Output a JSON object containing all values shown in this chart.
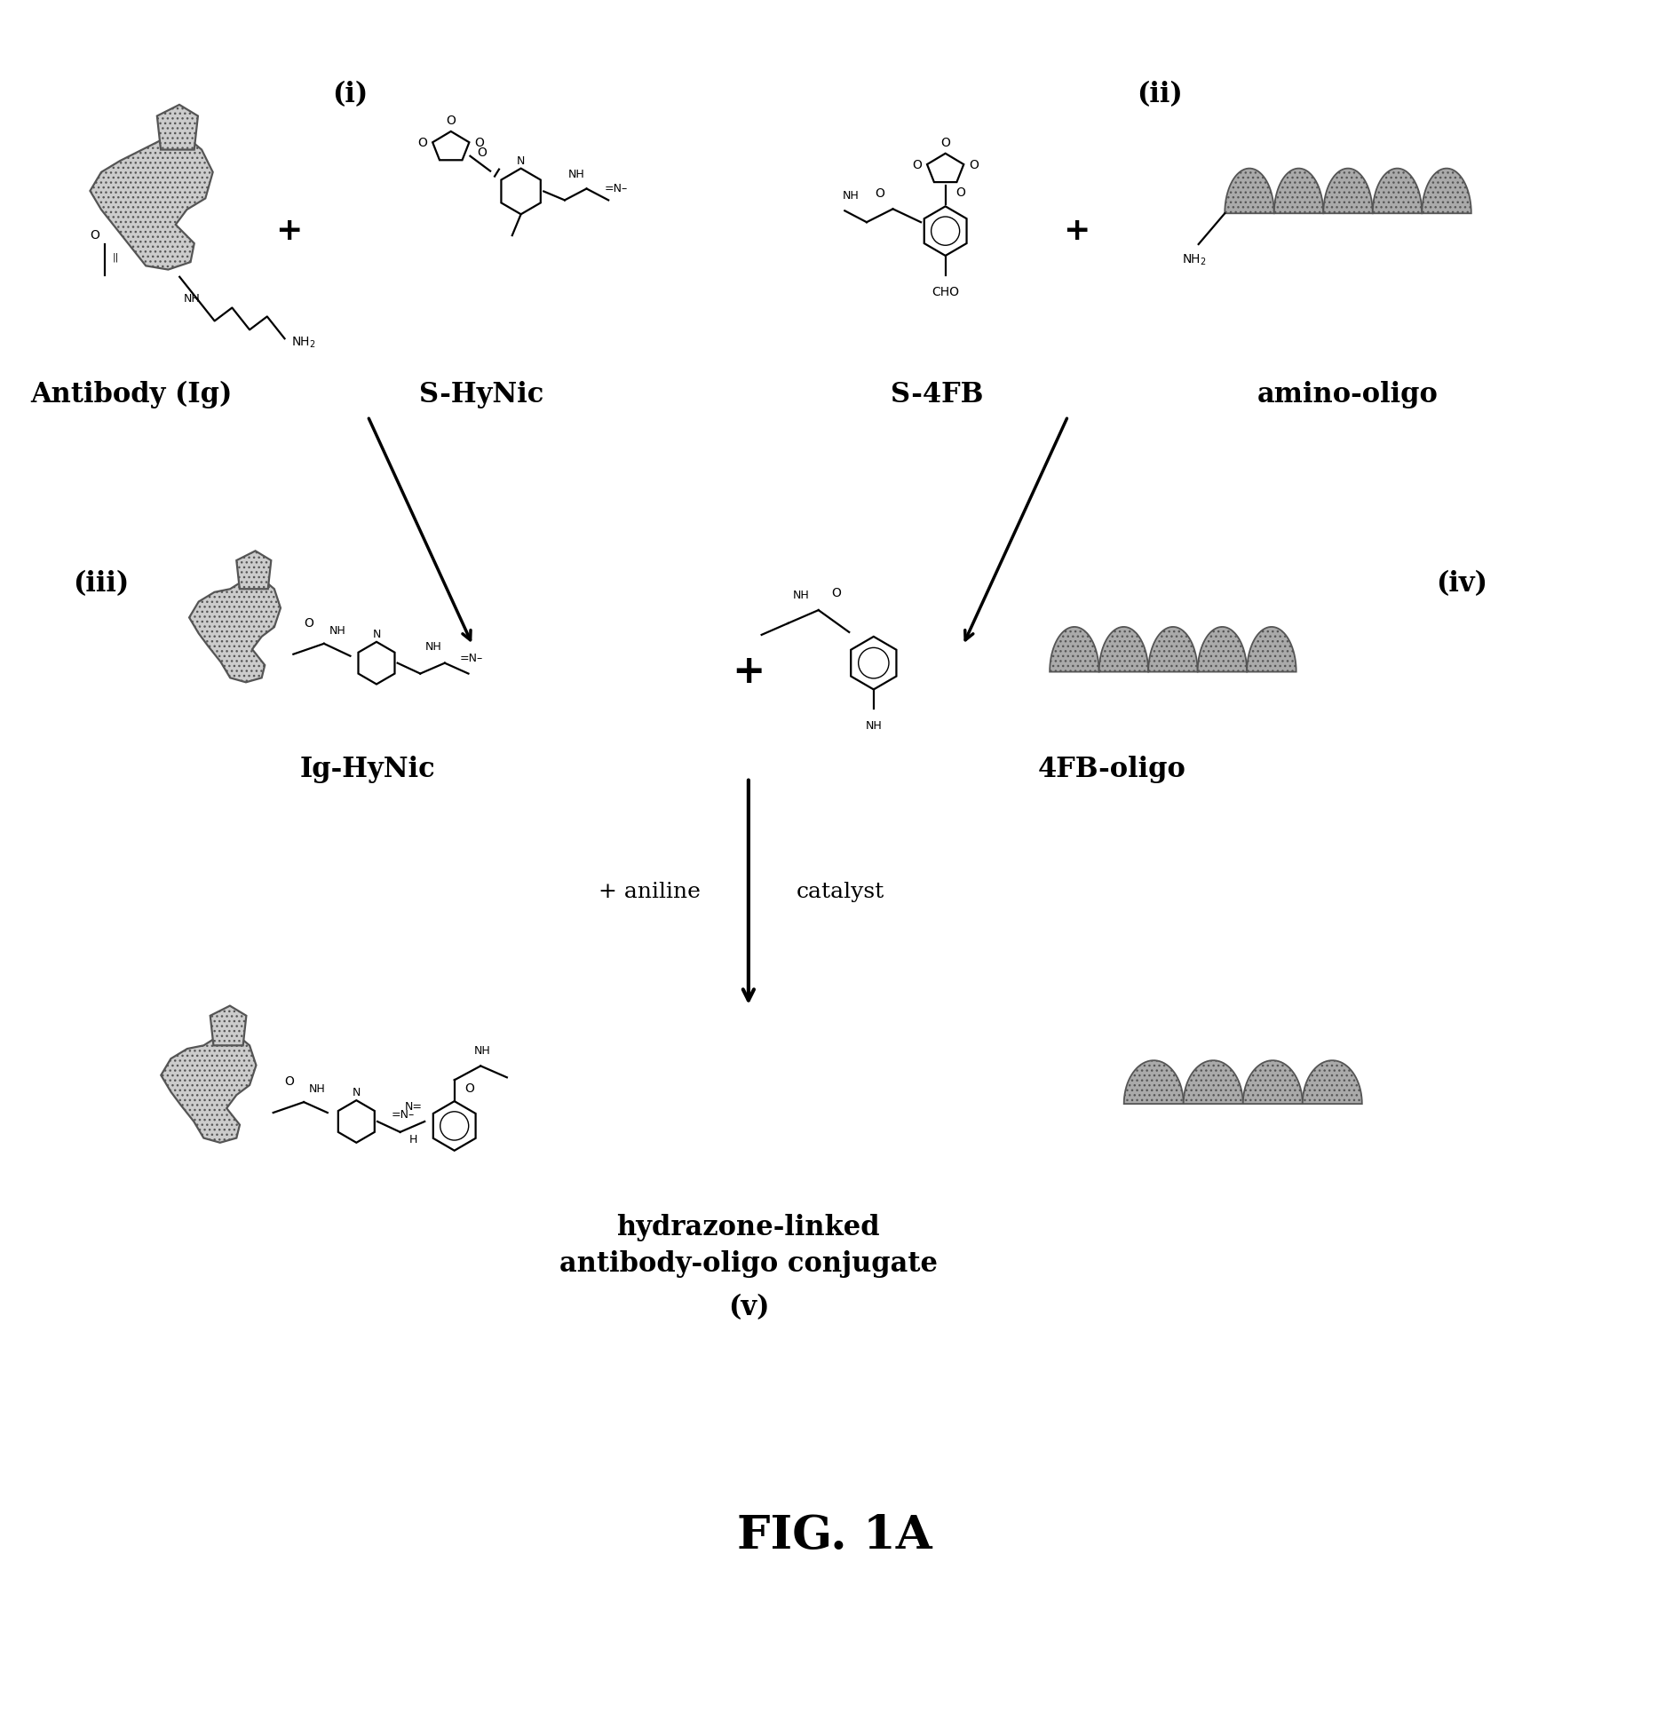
{
  "title": "FIG. 1A",
  "title_fontsize": 38,
  "background_color": "#ffffff",
  "labels": {
    "i": "(i)",
    "ii": "(ii)",
    "iii": "(iii)",
    "iv": "(iv)",
    "v": "(v)",
    "antibody": "Antibody (Ig)",
    "shynic": "S-HyNic",
    "s4fb": "S-4FB",
    "amino_oligo": "amino-oligo",
    "ig_hynic": "Ig-HyNic",
    "4fb_oligo": "4FB-oligo",
    "aniline": "+ aniline",
    "catalyst": "catalyst",
    "product": "hydrazone-linked\nantibody-oligo conjugate"
  },
  "hatch_color": "#555555",
  "face_color": "#cccccc",
  "oligo_face": "#aaaaaa",
  "label_fontsize": 20,
  "bold_label_fontsize": 22,
  "small_fontsize": 10,
  "arrow_lw": 2.5
}
